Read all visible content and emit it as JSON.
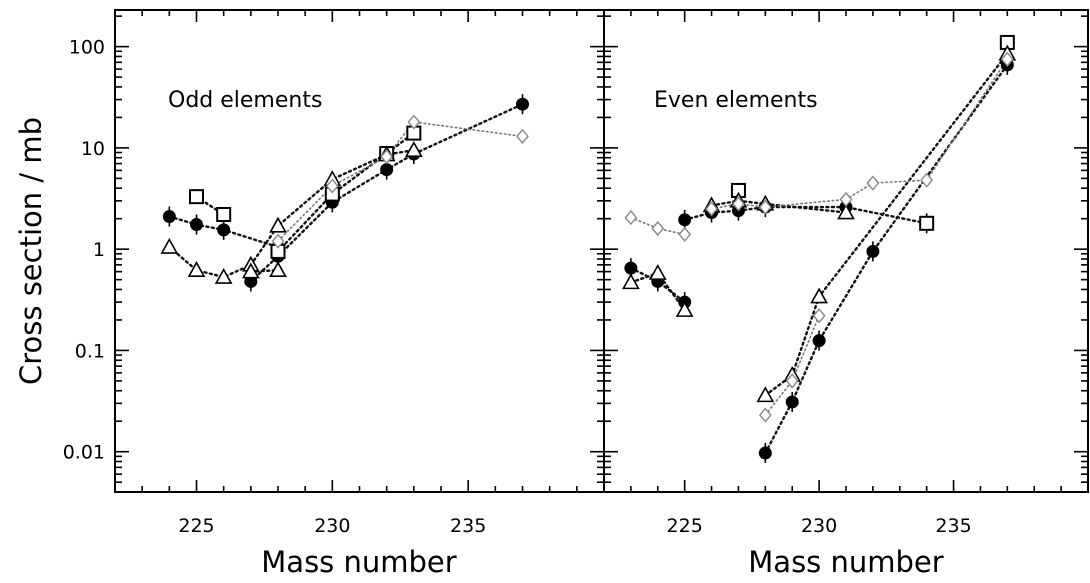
{
  "chart_data": [
    {
      "type": "scatter",
      "title": "Odd elements",
      "xlabel": "Mass number",
      "ylabel": "Cross section / mb",
      "xlim": [
        222,
        240
      ],
      "ylim": [
        0.004,
        230
      ],
      "yscale": "log",
      "x_ticks": [
        225,
        230,
        235
      ],
      "y_ticks": [
        0.01,
        0.1,
        1,
        10,
        100
      ],
      "y_tick_labels": [
        "0.01",
        "0.1",
        "1",
        "10",
        "100"
      ],
      "grid": false,
      "series": [
        {
          "marker": "filled-circle",
          "line": "dotted-dark",
          "segments": [
            [
              [
                224,
                2.1
              ],
              [
                225,
                1.75
              ],
              [
                226,
                1.55
              ],
              [
                228,
                1.05
              ]
            ],
            [
              [
                227,
                0.48
              ],
              [
                228,
                0.85
              ],
              [
                230,
                2.9
              ],
              [
                232,
                6.1
              ],
              [
                233,
                8.7
              ],
              [
                237,
                27
              ]
            ]
          ]
        },
        {
          "marker": "open-square",
          "line": "dotted-dark",
          "segments": [
            [
              [
                225,
                3.3
              ],
              [
                226,
                2.2
              ]
            ],
            [
              [
                228,
                0.95
              ],
              [
                230,
                3.5
              ],
              [
                232,
                8.8
              ],
              [
                233,
                14
              ]
            ]
          ]
        },
        {
          "marker": "open-triangle",
          "line": "dotted-dark",
          "segments": [
            [
              [
                224,
                1.05
              ],
              [
                225,
                0.62
              ],
              [
                226,
                0.53
              ],
              [
                227,
                0.7
              ],
              [
                228,
                1.7
              ],
              [
                230,
                4.9
              ],
              [
                232,
                8.6
              ],
              [
                233,
                9.5
              ]
            ],
            [
              [
                227,
                0.6
              ],
              [
                228,
                0.62
              ]
            ]
          ]
        },
        {
          "marker": "open-diamond",
          "line": "dotted-light",
          "segments": [
            [
              [
                228,
                1.2
              ],
              [
                230,
                4.2
              ],
              [
                232,
                8.2
              ],
              [
                233,
                18
              ],
              [
                237,
                13
              ]
            ]
          ]
        }
      ]
    },
    {
      "type": "scatter",
      "title": "Even elements",
      "xlabel": "Mass number",
      "ylabel": "",
      "xlim": [
        222,
        240
      ],
      "ylim": [
        0.004,
        230
      ],
      "yscale": "log",
      "x_ticks": [
        225,
        230,
        235
      ],
      "y_ticks": [
        0.01,
        0.1,
        1,
        10,
        100
      ],
      "grid": false,
      "series": [
        {
          "marker": "filled-circle",
          "line": "dotted-dark",
          "segments": [
            [
              [
                223,
                0.65
              ],
              [
                224,
                0.48
              ],
              [
                225,
                0.3
              ]
            ],
            [
              [
                225,
                1.95
              ],
              [
                226,
                2.3
              ],
              [
                227,
                2.4
              ],
              [
                228,
                2.6
              ],
              [
                231,
                2.6
              ],
              [
                234,
                1.8
              ]
            ],
            [
              [
                228,
                0.0097
              ],
              [
                229,
                0.031
              ],
              [
                230,
                0.125
              ],
              [
                232,
                0.95
              ],
              [
                237,
                66
              ]
            ]
          ]
        },
        {
          "marker": "open-square",
          "line": "dotted-dark",
          "segments": [
            [
              [
                227,
                3.8
              ]
            ],
            [
              [
                234,
                1.8
              ]
            ],
            [
              [
                237,
                110
              ]
            ]
          ]
        },
        {
          "marker": "open-triangle",
          "line": "dotted-dark",
          "segments": [
            [
              [
                223,
                0.47
              ],
              [
                224,
                0.58
              ],
              [
                225,
                0.25
              ]
            ],
            [
              [
                226,
                2.7
              ],
              [
                227,
                3.0
              ],
              [
                228,
                2.8
              ],
              [
                231,
                2.3
              ]
            ],
            [
              [
                228,
                0.036
              ],
              [
                229,
                0.057
              ],
              [
                230,
                0.34
              ],
              [
                237,
                85
              ]
            ]
          ]
        },
        {
          "marker": "open-diamond",
          "line": "dotted-light",
          "segments": [
            [
              [
                223,
                2.05
              ],
              [
                224,
                1.6
              ],
              [
                225,
                1.4
              ]
            ],
            [
              [
                226,
                2.5
              ],
              [
                227,
                2.8
              ],
              [
                228,
                2.6
              ],
              [
                231,
                3.1
              ],
              [
                232,
                4.5
              ],
              [
                234,
                4.8
              ],
              [
                237,
                75
              ]
            ],
            [
              [
                228,
                0.023
              ],
              [
                229,
                0.05
              ],
              [
                230,
                0.22
              ]
            ]
          ]
        }
      ]
    }
  ]
}
